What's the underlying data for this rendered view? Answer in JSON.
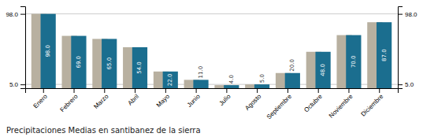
{
  "chart_data": {
    "type": "bar",
    "title": "Precipitaciones Medias en santibanez de la sierra",
    "categories": [
      "Enero",
      "Febrero",
      "Marzo",
      "Abril",
      "Mayo",
      "Junio",
      "Julio",
      "Agosto",
      "Septiembre",
      "Octubre",
      "Noviembre",
      "Diciembre"
    ],
    "series": [
      {
        "color": "#b8b0a0",
        "values": [
          98.0,
          69.0,
          65.0,
          54.0,
          22.0,
          11.0,
          4.0,
          5.0,
          20.0,
          48.0,
          70.0,
          87.0
        ]
      },
      {
        "color": "#1b6e8f",
        "values": [
          98.0,
          69.0,
          65.0,
          54.0,
          22.0,
          11.0,
          4.0,
          5.0,
          20.0,
          48.0,
          70.0,
          87.0
        ],
        "value_labels": [
          "98.0",
          "69.0",
          "65.0",
          "54.0",
          "22.0",
          "11.0",
          "4.0",
          "5.0",
          "20.0",
          "48.0",
          "70.0",
          "87.0"
        ]
      }
    ],
    "ylim": [
      0,
      108
    ],
    "yticks": [
      {
        "value": 5.0,
        "label": "5.0"
      },
      {
        "value": 98.0,
        "label": "98.0"
      }
    ],
    "grid": true,
    "data_labels": true
  }
}
